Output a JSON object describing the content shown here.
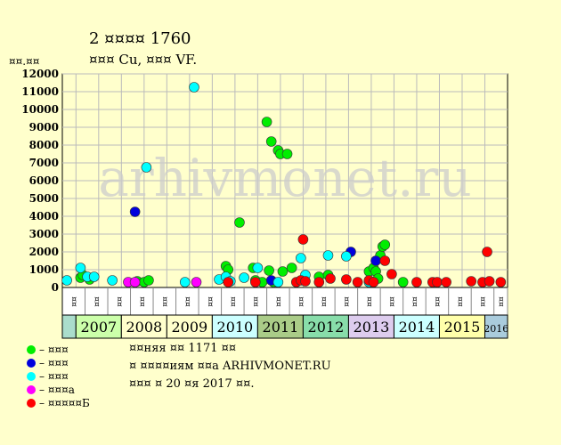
{
  "header": {
    "title_line1": "2 ¤¤¤¤ 1760",
    "title_line2": "¤¤¤ Cu, ¤¤¤ VF.",
    "y_unit": "¤¤.¤¤"
  },
  "watermark": "arhivmonet.ru",
  "legend": [
    {
      "label": "– ¤¤¤",
      "color": "#00ee00"
    },
    {
      "label": "– ¤¤¤",
      "color": "#0000dd"
    },
    {
      "label": "– ¤¤¤",
      "color": "#00ffff"
    },
    {
      "label": "– ¤¤¤а",
      "color": "#ff00ff"
    },
    {
      "label": "– ¤¤¤¤¤Б",
      "color": "#ff0000"
    }
  ],
  "notes": [
    "¤¤няя ¤¤ 1171 ¤¤",
    "¤ ¤¤¤¤иям ¤¤а ARHIVMONET.RU",
    "¤¤¤ ¤ 20 ¤я 2017 ¤¤."
  ],
  "chart_data": {
    "type": "scatter",
    "title": "2 ¤¤¤¤ 1760",
    "subtitle": "¤¤¤ Cu, ¤¤¤ VF.",
    "ylabel": "¤¤.¤¤",
    "ylim": [
      0,
      12000
    ],
    "yticks": [
      0,
      1000,
      2000,
      3000,
      4000,
      5000,
      6000,
      7000,
      8000,
      9000,
      10000,
      11000,
      12000
    ],
    "grid": true,
    "xlim": [
      2006.7,
      2016.5
    ],
    "years": [
      {
        "label": "2007",
        "start": 2007,
        "end": 2008,
        "color": "#ccffaa",
        "small": false
      },
      {
        "label": "2008",
        "start": 2008,
        "end": 2009,
        "color": "#ffffcc",
        "small": false
      },
      {
        "label": "2009",
        "start": 2009,
        "end": 2010,
        "color": "#ffffcc",
        "small": false
      },
      {
        "label": "2010",
        "start": 2010,
        "end": 2011,
        "color": "#ccffff",
        "small": false
      },
      {
        "label": "2011",
        "start": 2011,
        "end": 2012,
        "color": "#aacc88",
        "small": false
      },
      {
        "label": "2012",
        "start": 2012,
        "end": 2013,
        "color": "#88ddaa",
        "small": false
      },
      {
        "label": "2013",
        "start": 2013,
        "end": 2014,
        "color": "#ddccee",
        "small": false
      },
      {
        "label": "2014",
        "start": 2014,
        "end": 2015,
        "color": "#ccffff",
        "small": false
      },
      {
        "label": "2015",
        "start": 2015,
        "end": 2016,
        "color": "#ffffaa",
        "small": false
      },
      {
        "label": "2016",
        "start": 2016,
        "end": 2016.5,
        "color": "#aaccdd",
        "small": true
      }
    ],
    "lead_band_color": "#aaddcc",
    "half_labels": [
      "¤¤",
      "¤¤"
    ],
    "series": [
      {
        "name": "– ¤¤¤",
        "color": "#00ee00",
        "points": [
          [
            2007.1,
            550
          ],
          [
            2007.15,
            700
          ],
          [
            2007.3,
            450
          ],
          [
            2008.35,
            350
          ],
          [
            2008.5,
            300
          ],
          [
            2008.6,
            400
          ],
          [
            2010.3,
            1200
          ],
          [
            2010.35,
            1000
          ],
          [
            2010.6,
            3650
          ],
          [
            2010.9,
            1100
          ],
          [
            2010.95,
            400
          ],
          [
            2011.1,
            300
          ],
          [
            2011.2,
            9300
          ],
          [
            2011.25,
            950
          ],
          [
            2011.3,
            8200
          ],
          [
            2011.35,
            300
          ],
          [
            2011.45,
            7700
          ],
          [
            2011.5,
            7500
          ],
          [
            2011.55,
            900
          ],
          [
            2011.65,
            7500
          ],
          [
            2011.75,
            1100
          ],
          [
            2012.35,
            600
          ],
          [
            2012.55,
            700
          ],
          [
            2013.45,
            900
          ],
          [
            2013.55,
            1100
          ],
          [
            2013.6,
            900
          ],
          [
            2013.65,
            500
          ],
          [
            2013.7,
            1800
          ],
          [
            2013.75,
            2300
          ],
          [
            2013.8,
            2400
          ],
          [
            2014.2,
            300
          ]
        ]
      },
      {
        "name": "– ¤¤¤",
        "color": "#0000dd",
        "points": [
          [
            2008.3,
            4250
          ],
          [
            2011.3,
            400
          ],
          [
            2013.05,
            2000
          ],
          [
            2013.6,
            1500
          ]
        ]
      },
      {
        "name": "– ¤¤¤",
        "color": "#00ffff",
        "points": [
          [
            2006.8,
            400
          ],
          [
            2007.1,
            1100
          ],
          [
            2007.25,
            600
          ],
          [
            2007.4,
            600
          ],
          [
            2007.8,
            400
          ],
          [
            2008.55,
            6750
          ],
          [
            2009.4,
            300
          ],
          [
            2009.6,
            11250
          ],
          [
            2010.15,
            450
          ],
          [
            2010.3,
            600
          ],
          [
            2010.4,
            350
          ],
          [
            2010.7,
            550
          ],
          [
            2011.0,
            1100
          ],
          [
            2011.45,
            300
          ],
          [
            2011.95,
            1650
          ],
          [
            2012.05,
            700
          ],
          [
            2012.55,
            1800
          ],
          [
            2012.95,
            1750
          ],
          [
            2013.45,
            300
          ]
        ]
      },
      {
        "name": "– ¤¤¤а",
        "color": "#ff00ff",
        "points": [
          [
            2008.15,
            300
          ],
          [
            2008.3,
            300
          ],
          [
            2009.65,
            300
          ]
        ]
      },
      {
        "name": "– ¤¤¤¤¤Б",
        "color": "#ff0000",
        "points": [
          [
            2010.35,
            300
          ],
          [
            2010.95,
            300
          ],
          [
            2011.85,
            300
          ],
          [
            2011.95,
            400
          ],
          [
            2012.0,
            2700
          ],
          [
            2012.05,
            350
          ],
          [
            2012.35,
            300
          ],
          [
            2012.6,
            500
          ],
          [
            2012.95,
            450
          ],
          [
            2013.2,
            300
          ],
          [
            2013.45,
            400
          ],
          [
            2013.55,
            300
          ],
          [
            2013.8,
            1500
          ],
          [
            2013.95,
            750
          ],
          [
            2014.5,
            300
          ],
          [
            2014.85,
            300
          ],
          [
            2014.95,
            300
          ],
          [
            2015.15,
            300
          ],
          [
            2015.7,
            350
          ],
          [
            2015.95,
            300
          ],
          [
            2016.05,
            2000
          ],
          [
            2016.1,
            350
          ],
          [
            2016.35,
            300
          ]
        ]
      }
    ]
  }
}
